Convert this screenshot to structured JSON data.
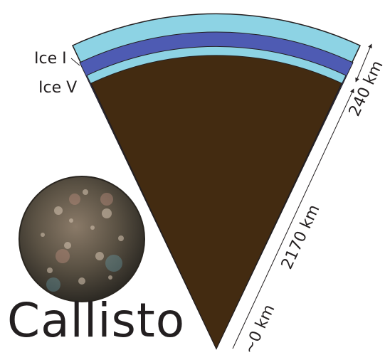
{
  "title": "Callisto",
  "layers": [
    {
      "name": "Ice I",
      "color": "#8dd3e4"
    },
    {
      "name": "",
      "color": "#4e5bb3"
    },
    {
      "name": "Ice V",
      "color": "#8dd3e4"
    },
    {
      "name": "",
      "color": "#432b11"
    }
  ],
  "dimensions": {
    "outer": "240 km",
    "core": "2170 km",
    "bottom": "~0 km"
  }
}
